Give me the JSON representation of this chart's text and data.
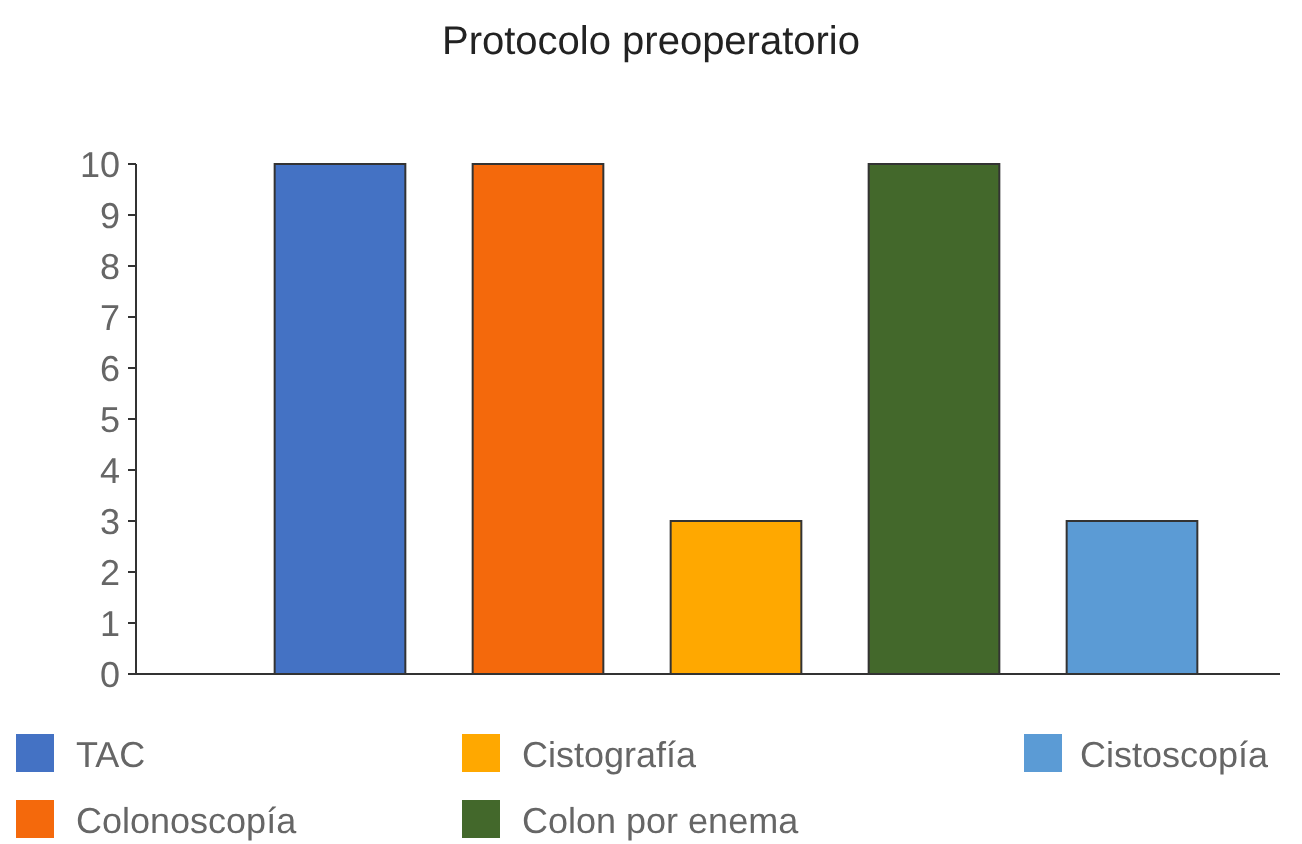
{
  "chart_data": {
    "type": "bar",
    "title": "Protocolo preoperatorio",
    "categories": [
      null,
      null,
      null,
      null,
      null
    ],
    "series": [
      {
        "name": "TAC",
        "color": "#4472c4",
        "values": [
          10,
          null,
          null,
          null,
          null
        ]
      },
      {
        "name": "Colonoscopía",
        "color": "#f4690c",
        "values": [
          null,
          10,
          null,
          null,
          null
        ]
      },
      {
        "name": "Cistografía",
        "color": "#ffa800",
        "values": [
          null,
          null,
          3,
          null,
          null
        ]
      },
      {
        "name": "Colon por enema",
        "color": "#43682b",
        "values": [
          null,
          null,
          null,
          10,
          null
        ]
      },
      {
        "name": "Cistoscopía",
        "color": "#5b9bd5",
        "values": [
          null,
          null,
          null,
          null,
          3
        ]
      }
    ],
    "ylim": [
      0,
      10
    ],
    "yticks": [
      0,
      1,
      2,
      3,
      4,
      5,
      6,
      7,
      8,
      9,
      10
    ],
    "legend": "bottom"
  }
}
